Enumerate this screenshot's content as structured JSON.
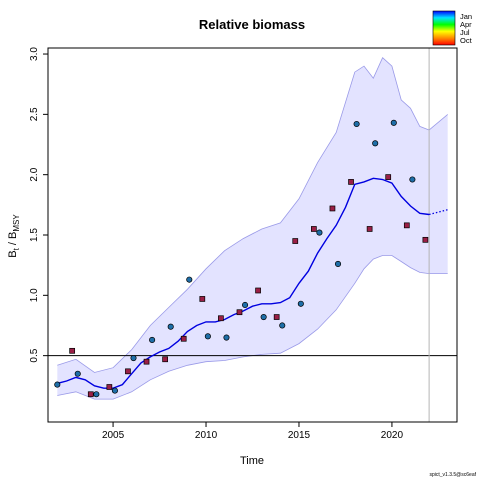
{
  "chart_data": {
    "type": "line",
    "title": "Relative biomass",
    "xlabel": "Time",
    "ylabel": {
      "main": "B",
      "sub1": "t",
      "sep": " / B",
      "sub2": "MSY"
    },
    "xlim": [
      2001.5,
      2023.5
    ],
    "ylim": [
      -0.05,
      3.05
    ],
    "x_ticks": [
      2005,
      2010,
      2015,
      2020
    ],
    "y_ticks": [
      0.5,
      1.0,
      1.5,
      2.0,
      2.5,
      3.0
    ],
    "y_tick_labels": [
      "0.5",
      "1.0",
      "1.5",
      "2.0",
      "2.5",
      "3.0"
    ],
    "reference_line_y": 0.5,
    "vertical_line_x": 2022.0,
    "colors": {
      "estimate": "#0000e0",
      "band_fill": "#e3e3ff",
      "band_edge": "#9a9ae8",
      "reference": "#000000",
      "vline": "#b5b5b5"
    },
    "estimate": {
      "x": [
        2002.0,
        2002.5,
        2003.0,
        2003.5,
        2004.0,
        2004.5,
        2005.0,
        2005.5,
        2006.0,
        2006.5,
        2007.0,
        2007.5,
        2008.0,
        2008.5,
        2009.0,
        2009.5,
        2010.0,
        2010.5,
        2011.0,
        2011.5,
        2012.0,
        2012.5,
        2013.0,
        2013.5,
        2014.0,
        2014.5,
        2015.0,
        2015.5,
        2016.0,
        2016.5,
        2017.0,
        2017.5,
        2018.0,
        2018.5,
        2019.0,
        2019.5,
        2020.0,
        2020.5,
        2021.0,
        2021.5,
        2022.0
      ],
      "y": [
        0.27,
        0.29,
        0.32,
        0.3,
        0.25,
        0.23,
        0.23,
        0.26,
        0.35,
        0.44,
        0.49,
        0.53,
        0.56,
        0.62,
        0.7,
        0.75,
        0.78,
        0.78,
        0.8,
        0.84,
        0.87,
        0.91,
        0.93,
        0.93,
        0.94,
        0.98,
        1.1,
        1.2,
        1.35,
        1.47,
        1.58,
        1.73,
        1.92,
        1.94,
        1.97,
        1.96,
        1.93,
        1.82,
        1.74,
        1.68,
        1.67
      ]
    },
    "forecast": {
      "x": [
        2022.0,
        2022.5,
        2023.0
      ],
      "y": [
        1.67,
        1.69,
        1.71
      ]
    },
    "confidence_band": {
      "x": [
        2002.0,
        2003.0,
        2004.0,
        2005.0,
        2006.0,
        2007.0,
        2008.0,
        2009.0,
        2010.0,
        2011.0,
        2012.0,
        2013.0,
        2014.0,
        2015.0,
        2016.0,
        2017.0,
        2018.0,
        2018.5,
        2019.0,
        2019.5,
        2020.0,
        2020.5,
        2021.0,
        2021.5,
        2022.0,
        2023.0
      ],
      "upper": [
        0.42,
        0.47,
        0.36,
        0.4,
        0.55,
        0.75,
        0.9,
        1.05,
        1.22,
        1.37,
        1.47,
        1.55,
        1.6,
        1.8,
        2.1,
        2.35,
        2.85,
        2.9,
        2.8,
        2.97,
        2.9,
        2.62,
        2.55,
        2.4,
        2.37,
        2.5
      ],
      "lower": [
        0.17,
        0.2,
        0.14,
        0.14,
        0.2,
        0.3,
        0.37,
        0.42,
        0.45,
        0.46,
        0.49,
        0.51,
        0.52,
        0.6,
        0.72,
        0.88,
        1.1,
        1.22,
        1.3,
        1.33,
        1.33,
        1.28,
        1.23,
        1.19,
        1.18,
        1.18
      ]
    },
    "legend": {
      "position": "top-right",
      "labels": [
        "Jan",
        "Apr",
        "Jul",
        "Oct"
      ],
      "gradient": [
        "#0000ff",
        "#00e5ff",
        "#00ff00",
        "#ffff00",
        "#ff8800",
        "#ff0000"
      ]
    },
    "observations": [
      {
        "x": 2002.0,
        "y": 0.26,
        "shape": "circle",
        "color": "#1e6ea8"
      },
      {
        "x": 2002.8,
        "y": 0.54,
        "shape": "square",
        "color": "#9a1f46"
      },
      {
        "x": 2003.1,
        "y": 0.35,
        "shape": "circle",
        "color": "#1e6ea8"
      },
      {
        "x": 2003.8,
        "y": 0.18,
        "shape": "square",
        "color": "#9a1f46"
      },
      {
        "x": 2004.1,
        "y": 0.18,
        "shape": "circle",
        "color": "#1e6ea8"
      },
      {
        "x": 2004.8,
        "y": 0.24,
        "shape": "square",
        "color": "#9a1f46"
      },
      {
        "x": 2005.1,
        "y": 0.21,
        "shape": "circle",
        "color": "#1e6ea8"
      },
      {
        "x": 2005.8,
        "y": 0.37,
        "shape": "square",
        "color": "#9a1f46"
      },
      {
        "x": 2006.1,
        "y": 0.48,
        "shape": "circle",
        "color": "#1e6ea8"
      },
      {
        "x": 2006.8,
        "y": 0.45,
        "shape": "square",
        "color": "#9a1f46"
      },
      {
        "x": 2007.1,
        "y": 0.63,
        "shape": "circle",
        "color": "#1e6ea8"
      },
      {
        "x": 2007.8,
        "y": 0.47,
        "shape": "square",
        "color": "#9a1f46"
      },
      {
        "x": 2008.1,
        "y": 0.74,
        "shape": "circle",
        "color": "#1e6ea8"
      },
      {
        "x": 2008.8,
        "y": 0.64,
        "shape": "square",
        "color": "#9a1f46"
      },
      {
        "x": 2009.1,
        "y": 1.13,
        "shape": "circle",
        "color": "#1e6ea8"
      },
      {
        "x": 2009.8,
        "y": 0.97,
        "shape": "square",
        "color": "#9a1f46"
      },
      {
        "x": 2010.1,
        "y": 0.66,
        "shape": "circle",
        "color": "#1e6ea8"
      },
      {
        "x": 2010.8,
        "y": 0.81,
        "shape": "square",
        "color": "#9a1f46"
      },
      {
        "x": 2011.1,
        "y": 0.65,
        "shape": "circle",
        "color": "#1e6ea8"
      },
      {
        "x": 2011.8,
        "y": 0.86,
        "shape": "square",
        "color": "#9a1f46"
      },
      {
        "x": 2012.1,
        "y": 0.92,
        "shape": "circle",
        "color": "#1e6ea8"
      },
      {
        "x": 2012.8,
        "y": 1.04,
        "shape": "square",
        "color": "#9a1f46"
      },
      {
        "x": 2013.1,
        "y": 0.82,
        "shape": "circle",
        "color": "#1e6ea8"
      },
      {
        "x": 2013.8,
        "y": 0.82,
        "shape": "square",
        "color": "#9a1f46"
      },
      {
        "x": 2014.1,
        "y": 0.75,
        "shape": "circle",
        "color": "#1e6ea8"
      },
      {
        "x": 2014.8,
        "y": 1.45,
        "shape": "square",
        "color": "#9a1f46"
      },
      {
        "x": 2015.1,
        "y": 0.93,
        "shape": "circle",
        "color": "#1e6ea8"
      },
      {
        "x": 2015.8,
        "y": 1.55,
        "shape": "square",
        "color": "#9a1f46"
      },
      {
        "x": 2016.1,
        "y": 1.52,
        "shape": "circle",
        "color": "#1e6ea8"
      },
      {
        "x": 2016.8,
        "y": 1.72,
        "shape": "square",
        "color": "#9a1f46"
      },
      {
        "x": 2017.1,
        "y": 1.26,
        "shape": "circle",
        "color": "#1e6ea8"
      },
      {
        "x": 2017.8,
        "y": 1.94,
        "shape": "square",
        "color": "#9a1f46"
      },
      {
        "x": 2018.1,
        "y": 2.42,
        "shape": "circle",
        "color": "#1e6ea8"
      },
      {
        "x": 2018.8,
        "y": 1.55,
        "shape": "square",
        "color": "#9a1f46"
      },
      {
        "x": 2019.1,
        "y": 2.26,
        "shape": "circle",
        "color": "#1e6ea8"
      },
      {
        "x": 2019.8,
        "y": 1.98,
        "shape": "square",
        "color": "#9a1f46"
      },
      {
        "x": 2020.1,
        "y": 2.43,
        "shape": "circle",
        "color": "#1e6ea8"
      },
      {
        "x": 2020.8,
        "y": 1.58,
        "shape": "square",
        "color": "#9a1f46"
      },
      {
        "x": 2021.1,
        "y": 1.96,
        "shape": "circle",
        "color": "#1e6ea8"
      },
      {
        "x": 2021.8,
        "y": 1.46,
        "shape": "square",
        "color": "#9a1f46"
      }
    ],
    "footer_note": "spict_v1.3.5@sc6eaf"
  }
}
